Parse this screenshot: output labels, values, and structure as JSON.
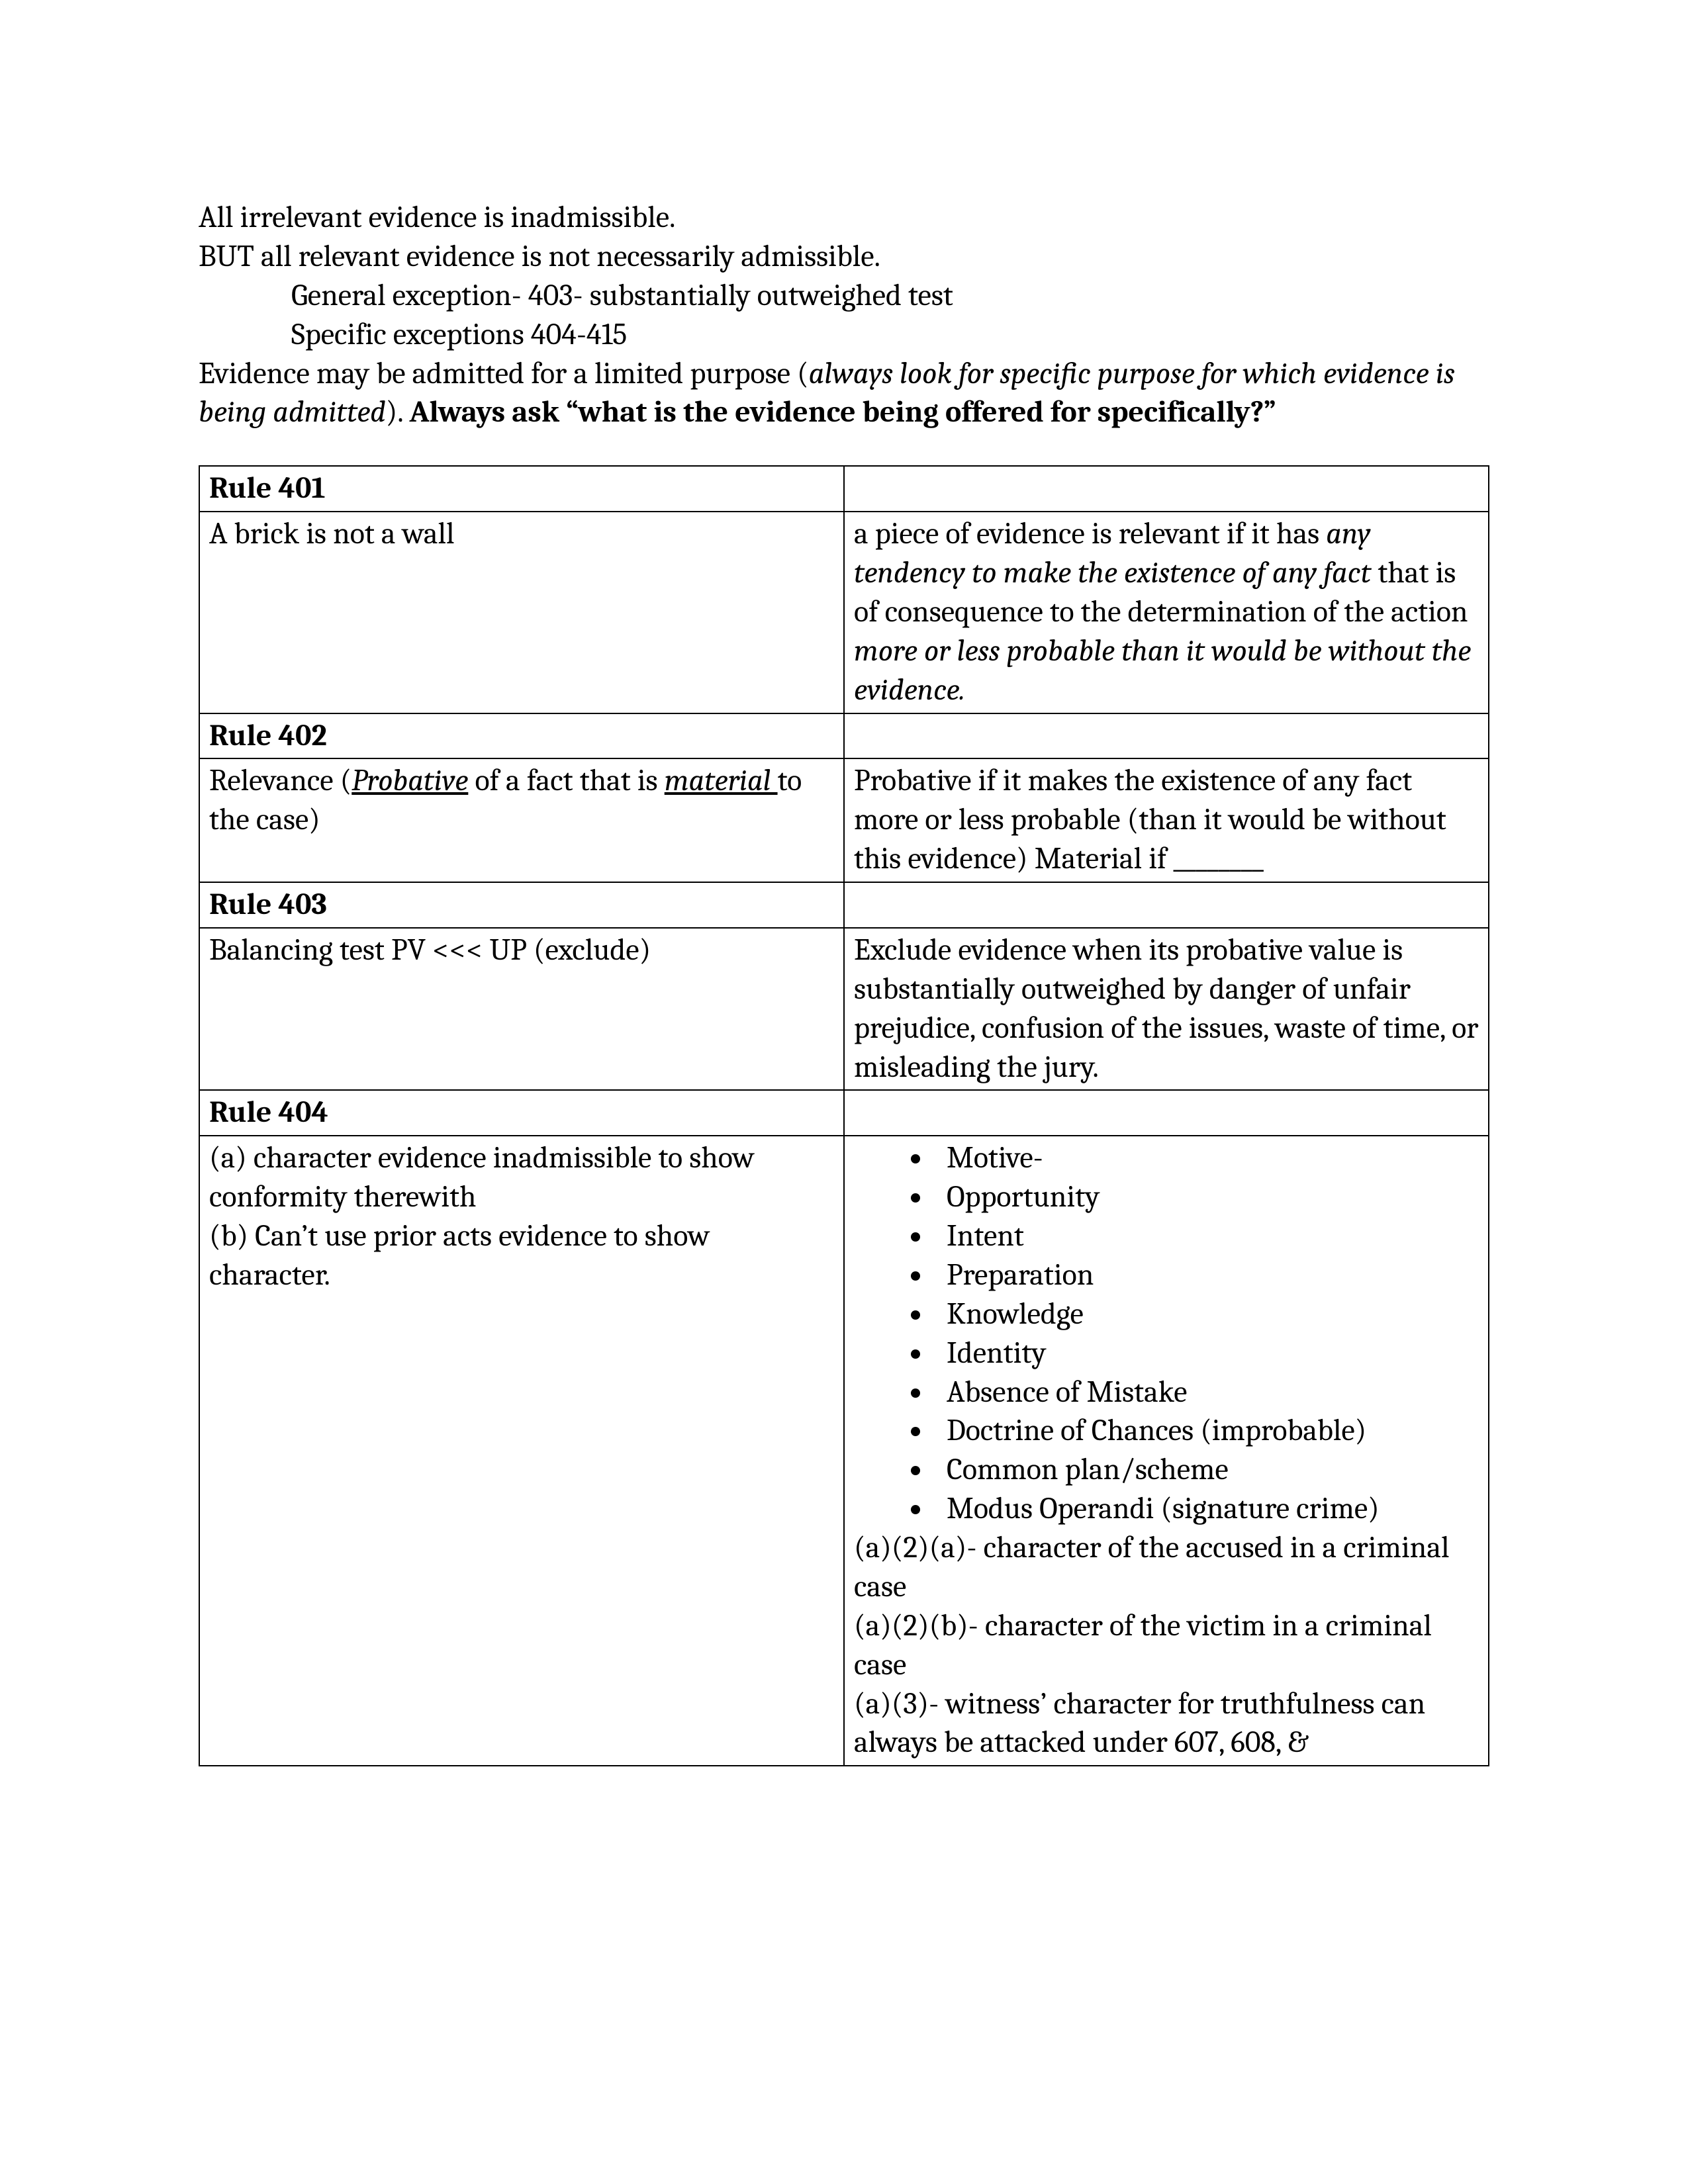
{
  "intro": {
    "line1": "All irrelevant evidence is inadmissible.",
    "line2": "BUT all relevant evidence is not necessarily admissible.",
    "indent1": "General exception- 403- substantially outweighed test",
    "indent2": "Specific exceptions 404-415",
    "line3_a": "Evidence may be admitted for a limited purpose (",
    "line3_b": "always look for specific purpose for which evidence is being admitted",
    "line3_c": "). ",
    "line3_d": "Always ask “what is the evidence being offered for specifically?”"
  },
  "rules": {
    "r401": {
      "title": "Rule 401",
      "left": "A brick is not a wall",
      "right_a": "a piece of evidence is relevant if it has ",
      "right_b": "any tendency to make the existence of any fact",
      "right_c": " that is of consequence to the determination of the action ",
      "right_d": "more or less probable than it would be without the evidence.",
      "right_e": ""
    },
    "r402": {
      "title": "Rule 402",
      "left_a": "Relevance (",
      "left_b": "Probative",
      "left_c": " of a fact that is ",
      "left_d": "material ",
      "left_e": "to the case)",
      "right": "Probative if it makes the existence of any fact more or less probable (than it would be without this evidence) Material if ________"
    },
    "r403": {
      "title": "Rule 403",
      "left": "Balancing test PV <<< UP (exclude)",
      "right": "Exclude evidence when its probative value is substantially outweighed by danger of unfair prejudice, confusion of the issues, waste of time, or misleading the jury."
    },
    "r404": {
      "title": "Rule 404",
      "left": "(a) character evidence inadmissible to show conformity therewith\n(b) Can’t use prior acts evidence to show character.",
      "bullets": [
        "Motive-",
        "Opportunity",
        "Intent",
        "Preparation",
        "Knowledge",
        "Identity",
        "Absence of Mistake",
        "Doctrine of Chances (improbable)",
        "Common plan/scheme",
        "Modus Operandi (signature crime)"
      ],
      "after1": "(a)(2)(a)- character of the accused in a criminal case",
      "after2": "(a)(2)(b)- character of the victim in a criminal case",
      "after3": "(a)(3)- witness’ character for truthfulness can always be attacked under 607, 608, &"
    }
  }
}
